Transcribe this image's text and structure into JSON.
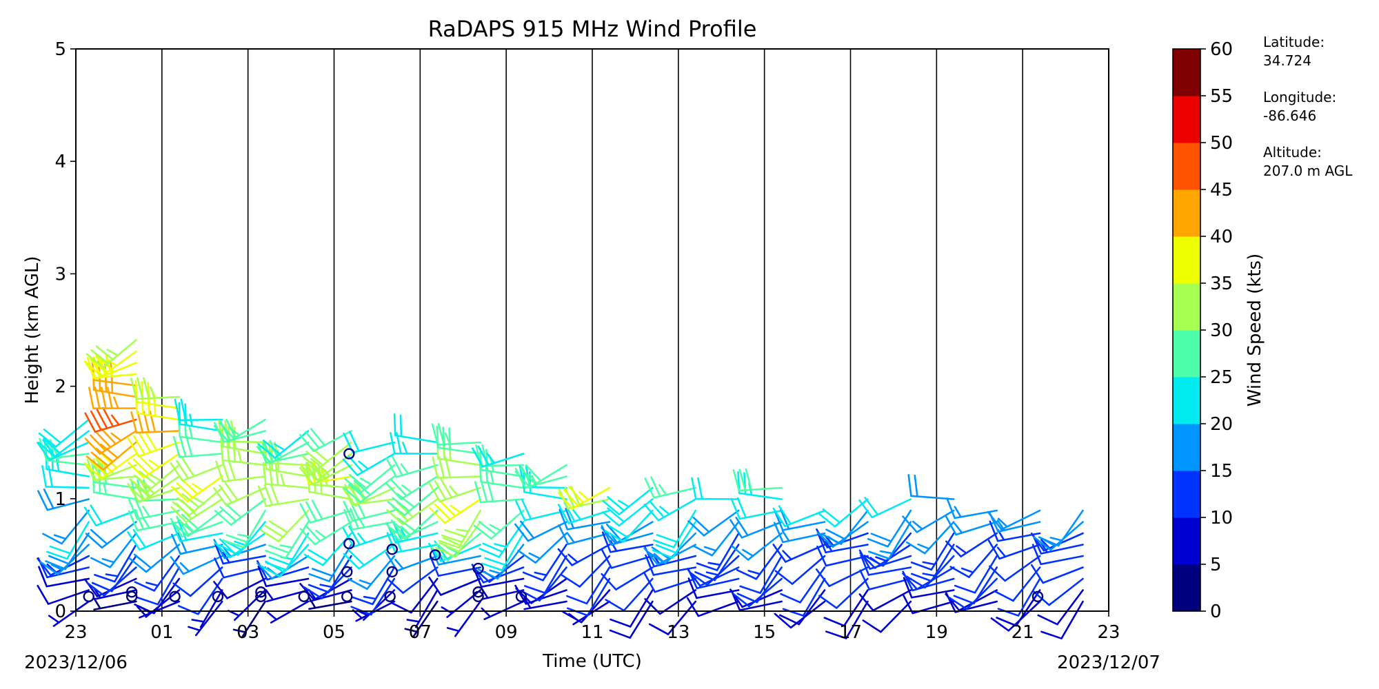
{
  "chart_data": {
    "type": "wind_barbs",
    "title": "RaDAPS 915 MHz Wind Profile",
    "xlabel": "Time (UTC)",
    "ylabel": "Height (km AGL)",
    "ylim": [
      0,
      5
    ],
    "yticks": [
      "0",
      "1",
      "2",
      "3",
      "4",
      "5"
    ],
    "xtick_labels": [
      "23",
      "01",
      "03",
      "05",
      "07",
      "09",
      "11",
      "13",
      "15",
      "17",
      "19",
      "21",
      "23"
    ],
    "xlim_hours": [
      -1,
      23
    ],
    "date_labels": {
      "start": "2023/12/06",
      "end": "2023/12/07"
    },
    "grid": "vertical lines every 2 h",
    "colorbar": {
      "label": "Wind Speed (kts)",
      "ticks": [
        "0",
        "5",
        "10",
        "15",
        "20",
        "25",
        "30",
        "35",
        "40",
        "45",
        "50",
        "55",
        "60"
      ],
      "colors": [
        "#00007f",
        "#0000d0",
        "#0033ff",
        "#0094ff",
        "#00ecf0",
        "#4dffaa",
        "#a6ff51",
        "#edff00",
        "#ffa600",
        "#ff5200",
        "#ec0000",
        "#7f0000"
      ]
    },
    "profiles": [
      {
        "hour": -0.7,
        "speeds": [
          6,
          8,
          9,
          12,
          14,
          16,
          18,
          20,
          17,
          19,
          22,
          24,
          26,
          25,
          24,
          22,
          20
        ]
      },
      {
        "hour": 0.4,
        "speeds": [
          4,
          6,
          8,
          10,
          12,
          14,
          16,
          18,
          22,
          25,
          28,
          30,
          34,
          38,
          42,
          44,
          46,
          44,
          42,
          40,
          38,
          36,
          35,
          34
        ]
      },
      {
        "hour": 1.4,
        "speeds": [
          5,
          7,
          9,
          11,
          14,
          18,
          22,
          25,
          27,
          29,
          30,
          32,
          34,
          36,
          38,
          40,
          38,
          36,
          34
        ]
      },
      {
        "hour": 2.4,
        "speeds": [
          5,
          7,
          10,
          12,
          15,
          18,
          22,
          26,
          29,
          31,
          33,
          35,
          30,
          28,
          26,
          24,
          22
        ]
      },
      {
        "hour": 3.4,
        "speeds": [
          4,
          6,
          8,
          10,
          13,
          16,
          20,
          24,
          26,
          28,
          30,
          31,
          33,
          32,
          30,
          28,
          26
        ]
      },
      {
        "hour": 4.4,
        "speeds": [
          5,
          7,
          9,
          12,
          16,
          20,
          24,
          27,
          30,
          32,
          34,
          32,
          30,
          28,
          26,
          24
        ]
      },
      {
        "hour": 5.4,
        "speeds": [
          4,
          6,
          8,
          11,
          14,
          18,
          22,
          25,
          28,
          31,
          34,
          36,
          34,
          32,
          30,
          28
        ]
      },
      {
        "hour": 6.4,
        "speeds": [
          5,
          7,
          10,
          13,
          17,
          21,
          24,
          27,
          29,
          31,
          30,
          28,
          26,
          24,
          22
        ]
      },
      {
        "hour": 7.4,
        "speeds": [
          4,
          6,
          9,
          12,
          16,
          20,
          23,
          26,
          28,
          30,
          29,
          27,
          25,
          24,
          22
        ]
      },
      {
        "hour": 8.4,
        "speeds": [
          5,
          7,
          9,
          12,
          15,
          20,
          25,
          30,
          34,
          36,
          34,
          32,
          30,
          28,
          26
        ]
      },
      {
        "hour": 9.4,
        "speeds": [
          5,
          7,
          9,
          11,
          13,
          16,
          20,
          24,
          26,
          28,
          27,
          26,
          25,
          24
        ]
      },
      {
        "hour": 10.4,
        "speeds": [
          6,
          8,
          9,
          10,
          12,
          14,
          16,
          18,
          20,
          22,
          24,
          26,
          28
        ]
      },
      {
        "hour": 11.4,
        "speeds": [
          7,
          9,
          10,
          11,
          12,
          14,
          16,
          18,
          24,
          32,
          36
        ]
      },
      {
        "hour": 12.4,
        "speeds": [
          8,
          9,
          10,
          11,
          12,
          14,
          16,
          18,
          20,
          22,
          24
        ]
      },
      {
        "hour": 13.4,
        "speeds": [
          8,
          9,
          10,
          12,
          14,
          16,
          18,
          20,
          22,
          24,
          26
        ]
      },
      {
        "hour": 14.4,
        "speeds": [
          8,
          9,
          10,
          11,
          12,
          13,
          14,
          15,
          18,
          20
        ]
      },
      {
        "hour": 15.4,
        "speeds": [
          8,
          9,
          10,
          11,
          12,
          14,
          16,
          18,
          20,
          24,
          28
        ]
      },
      {
        "hour": 16.4,
        "speeds": [
          8,
          9,
          10,
          11,
          12,
          14,
          16,
          18,
          20
        ]
      },
      {
        "hour": 17.4,
        "speeds": [
          8,
          9,
          10,
          11,
          12,
          13,
          14,
          16,
          18,
          20
        ]
      },
      {
        "hour": 18.4,
        "speeds": [
          8,
          9,
          10,
          11,
          12,
          13,
          14,
          16,
          18,
          20
        ]
      },
      {
        "hour": 19.4,
        "speeds": [
          8,
          9,
          10,
          11,
          12,
          13,
          14,
          15,
          16,
          18
        ]
      },
      {
        "hour": 20.4,
        "speeds": [
          8,
          9,
          10,
          11,
          12,
          13,
          14,
          15,
          16
        ]
      },
      {
        "hour": 21.4,
        "speeds": [
          8,
          9,
          10,
          11,
          12,
          13,
          14,
          15,
          16
        ]
      },
      {
        "hour": 22.4,
        "speeds": [
          8,
          9,
          10,
          11,
          12,
          13,
          14,
          15,
          16
        ]
      }
    ],
    "calm_markers": [
      {
        "hour": -0.7,
        "km": 0.13
      },
      {
        "hour": 0.3,
        "km": 0.13
      },
      {
        "hour": 0.3,
        "km": 0.17
      },
      {
        "hour": 1.3,
        "km": 0.13
      },
      {
        "hour": 2.3,
        "km": 0.13
      },
      {
        "hour": 3.3,
        "km": 0.13
      },
      {
        "hour": 3.3,
        "km": 0.17
      },
      {
        "hour": 4.3,
        "km": 0.13
      },
      {
        "hour": 5.3,
        "km": 0.13
      },
      {
        "hour": 5.3,
        "km": 0.35
      },
      {
        "hour": 5.35,
        "km": 0.6
      },
      {
        "hour": 5.35,
        "km": 1.4
      },
      {
        "hour": 6.3,
        "km": 0.13
      },
      {
        "hour": 6.35,
        "km": 0.35
      },
      {
        "hour": 6.35,
        "km": 0.55
      },
      {
        "hour": 7.35,
        "km": 0.5
      },
      {
        "hour": 8.35,
        "km": 0.13
      },
      {
        "hour": 8.35,
        "km": 0.17
      },
      {
        "hour": 8.35,
        "km": 0.38
      },
      {
        "hour": 9.35,
        "km": 0.13
      },
      {
        "hour": 21.35,
        "km": 0.13
      }
    ]
  },
  "station_info": {
    "lat_label": "Latitude:",
    "lat_value": "34.724",
    "lon_label": "Longitude:",
    "lon_value": "-86.646",
    "alt_label": "Altitude:",
    "alt_value": "207.0 m AGL"
  }
}
